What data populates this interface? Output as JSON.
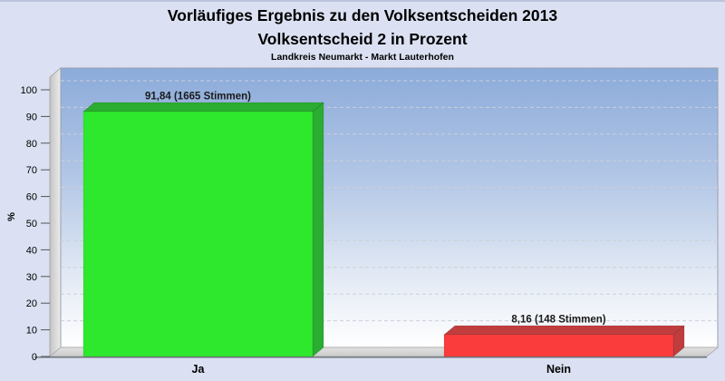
{
  "window": {
    "background_color": "#dbe1f2"
  },
  "chart_data": {
    "type": "bar",
    "projection": "3d",
    "title": "Vorläufiges Ergebnis zu den Volksentscheiden 2013",
    "subtitle": "Volksentscheid 2 in Prozent",
    "region": "Landkreis Neumarkt - Markt Lauterhofen",
    "ylabel": "%",
    "ylim": [
      0,
      100
    ],
    "ytick_step": 10,
    "yticks": [
      0,
      10,
      20,
      30,
      40,
      50,
      60,
      70,
      80,
      90,
      100
    ],
    "grid": "dashed-horizontal",
    "legend_position": "none",
    "categories": [
      "Ja",
      "Nein"
    ],
    "values": [
      91.84,
      8.16
    ],
    "votes": [
      1665,
      148
    ],
    "bar_labels": [
      "91,84 (1665 Stimmen)",
      "8,16 (148 Stimmen)"
    ],
    "colors": {
      "bar_front": [
        "#2de82d",
        "#fa3c3c"
      ],
      "bar_side": [
        "#2aad31",
        "#c13d3d"
      ],
      "wall_gradient_top": "#8cabda",
      "wall_gradient_bottom": "#ffffff",
      "gridline": "#ccd0d8",
      "side_wall": "#d9d9d9",
      "floor": "#d2d2d2",
      "axis_line": "#6a6f78",
      "text": "#000000",
      "page_background": "#dbe1f2"
    }
  }
}
